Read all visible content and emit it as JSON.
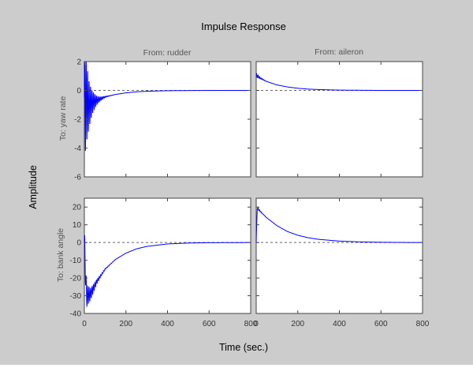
{
  "chart_data": {
    "type": "line",
    "title": "Impulse Response",
    "xlabel": "Time (sec.)",
    "ylabel": "Amplitude",
    "column_titles": [
      "From: rudder",
      "From: aileron"
    ],
    "row_labels": [
      "To: yaw rate",
      "To: bank angle"
    ],
    "colors": {
      "trace": "#0000ff",
      "zero_line": "#666666",
      "background": "#cccccc",
      "panel": "#ffffff"
    },
    "grid": false,
    "panels": [
      {
        "from": "rudder",
        "to": "yaw rate",
        "xlim": [
          0,
          800
        ],
        "ylim": [
          -6,
          2
        ],
        "xticks": [
          0,
          200,
          400,
          600,
          800
        ],
        "yticks": [
          -6,
          -4,
          -2,
          0,
          2
        ],
        "oscillation": {
          "freq_period": 7,
          "decay": 22,
          "amplitude": 4.6
        },
        "points": [
          [
            0,
            -0.5
          ],
          [
            20,
            -1.0
          ],
          [
            50,
            -0.75
          ],
          [
            100,
            -0.45
          ],
          [
            150,
            -0.28
          ],
          [
            200,
            -0.17
          ],
          [
            250,
            -0.1
          ],
          [
            300,
            -0.06
          ],
          [
            400,
            -0.02
          ],
          [
            500,
            -0.01
          ],
          [
            600,
            0
          ],
          [
            700,
            0
          ],
          [
            800,
            0
          ]
        ]
      },
      {
        "from": "aileron",
        "to": "yaw rate",
        "xlim": [
          0,
          800
        ],
        "ylim": [
          -6,
          2
        ],
        "xticks": [
          0,
          200,
          400,
          600,
          800
        ],
        "yticks": [
          -6,
          -4,
          -2,
          0,
          2
        ],
        "oscillation": {
          "freq_period": 7,
          "decay": 20,
          "amplitude": 0.15
        },
        "points": [
          [
            0,
            1.05
          ],
          [
            20,
            0.85
          ],
          [
            50,
            0.62
          ],
          [
            100,
            0.38
          ],
          [
            150,
            0.24
          ],
          [
            200,
            0.15
          ],
          [
            250,
            0.09
          ],
          [
            300,
            0.06
          ],
          [
            400,
            0.02
          ],
          [
            500,
            0.01
          ],
          [
            600,
            0
          ],
          [
            700,
            0
          ],
          [
            800,
            0
          ]
        ]
      },
      {
        "from": "rudder",
        "to": "bank angle",
        "xlim": [
          0,
          800
        ],
        "ylim": [
          -40,
          25
        ],
        "xticks": [
          0,
          200,
          400,
          600,
          800
        ],
        "yticks": [
          -40,
          -30,
          -20,
          -10,
          0,
          10,
          20
        ],
        "oscillation": {
          "freq_period": 7,
          "decay": 30,
          "amplitude": 9
        },
        "points": [
          [
            0,
            0
          ],
          [
            10,
            -30
          ],
          [
            30,
            -29
          ],
          [
            60,
            -22
          ],
          [
            100,
            -15
          ],
          [
            150,
            -9.5
          ],
          [
            200,
            -6
          ],
          [
            250,
            -3.6
          ],
          [
            300,
            -2.2
          ],
          [
            400,
            -0.8
          ],
          [
            500,
            -0.3
          ],
          [
            600,
            -0.1
          ],
          [
            800,
            0
          ]
        ]
      },
      {
        "from": "aileron",
        "to": "bank angle",
        "xlim": [
          0,
          800
        ],
        "ylim": [
          -40,
          25
        ],
        "xticks": [
          0,
          200,
          400,
          600,
          800
        ],
        "yticks": [
          -40,
          -30,
          -20,
          -10,
          0,
          10,
          20
        ],
        "oscillation": {
          "freq_period": 7,
          "decay": 15,
          "amplitude": 1.2
        },
        "points": [
          [
            0,
            0
          ],
          [
            5,
            19.5
          ],
          [
            20,
            17.5
          ],
          [
            50,
            14
          ],
          [
            100,
            9.5
          ],
          [
            150,
            6.2
          ],
          [
            200,
            4.1
          ],
          [
            250,
            2.7
          ],
          [
            300,
            1.8
          ],
          [
            400,
            0.8
          ],
          [
            500,
            0.35
          ],
          [
            600,
            0.15
          ],
          [
            700,
            0.05
          ],
          [
            800,
            0
          ]
        ]
      }
    ]
  }
}
